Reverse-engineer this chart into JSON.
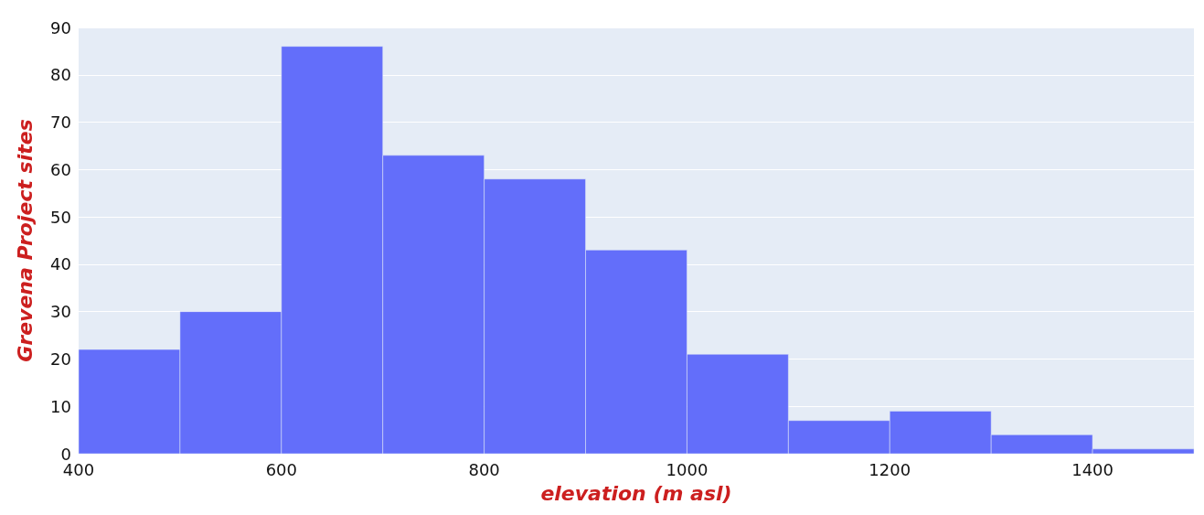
{
  "chart_data": {
    "type": "histogram",
    "xlabel": "elevation (m asl)",
    "ylabel": "Grevena Project sites",
    "bins": [
      400,
      500,
      600,
      700,
      800,
      900,
      1000,
      1100,
      1200,
      1300,
      1400,
      1500
    ],
    "values": [
      22,
      30,
      86,
      63,
      58,
      43,
      21,
      7,
      9,
      4,
      1
    ],
    "color": "#636efa",
    "xlim": [
      400,
      1500
    ],
    "xticks": [
      400,
      600,
      800,
      1000,
      1200,
      1400
    ],
    "ylim": [
      0,
      90
    ],
    "yticks": [
      0,
      10,
      20,
      30,
      40,
      50,
      60,
      70,
      80,
      90
    ],
    "grid": "y"
  }
}
